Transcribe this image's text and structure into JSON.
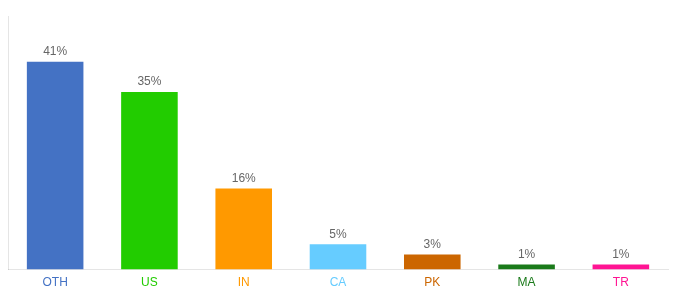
{
  "chart_data": {
    "type": "bar",
    "categories": [
      "OTH",
      "US",
      "IN",
      "CA",
      "PK",
      "MA",
      "TR"
    ],
    "values": [
      41,
      35,
      16,
      5,
      3,
      1,
      1
    ],
    "value_labels": [
      "41%",
      "35%",
      "16%",
      "5%",
      "3%",
      "1%",
      "1%"
    ],
    "data_labels": true,
    "colors": [
      "#4472c4",
      "#22cc00",
      "#ff9900",
      "#66ccff",
      "#cc6600",
      "#1a7a1a",
      "#ff1493"
    ],
    "ylim": [
      0,
      50
    ],
    "grid": false,
    "tick_labels": "x"
  }
}
